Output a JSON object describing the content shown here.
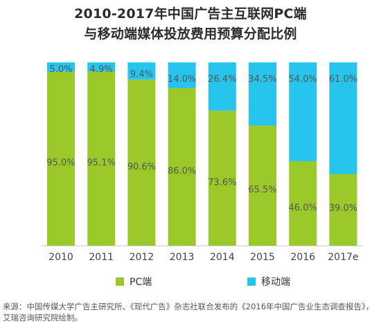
{
  "title_line1": "2010-2017年中国广告主互联网PC端",
  "title_line2": "与移动端媒体投放费用预算分配比例",
  "legend": {
    "pc": "PC端",
    "mobile": "移动端"
  },
  "source": "来源：中国传媒大学广告主研究所、《现代广告》杂志社联合发布的《2016年中国广告业生态调查报告》，艾瑞咨询研究院绘制。",
  "colors": {
    "pc": "#9cc92a",
    "mobile": "#27c4ee",
    "text": "#555555"
  },
  "chart_data": {
    "type": "bar",
    "stacked": true,
    "percent": true,
    "categories": [
      "2010",
      "2011",
      "2012",
      "2013",
      "2014",
      "2015",
      "2016",
      "2017e"
    ],
    "series": [
      {
        "name": "PC端",
        "values": [
          95.0,
          95.1,
          90.6,
          86.0,
          73.6,
          65.5,
          46.0,
          39.0
        ],
        "labels": [
          "95.0%",
          "95.1%",
          "90.6%",
          "86.0%",
          "73.6%",
          "65.5%",
          "46.0%",
          "39.0%"
        ]
      },
      {
        "name": "移动端",
        "values": [
          5.0,
          4.9,
          9.4,
          14.0,
          26.4,
          34.5,
          54.0,
          61.0
        ],
        "labels": [
          "5.0%",
          "4.9%",
          "9.4%",
          "14.0%",
          "26.4%",
          "34.5%",
          "54.0%",
          "61.0%"
        ]
      }
    ],
    "ylim": [
      0,
      100
    ],
    "legend_position": "bottom",
    "grid": false
  }
}
